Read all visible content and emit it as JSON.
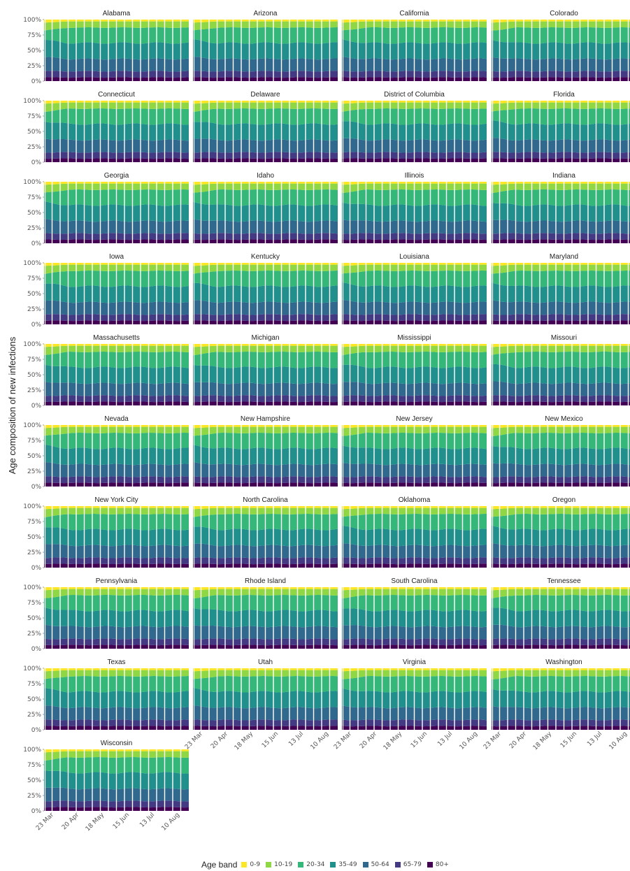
{
  "chart_data": {
    "type": "area",
    "y_axis_label": "Age composition of new infections",
    "y_ticks": [
      "0%",
      "25%",
      "50%",
      "75%",
      "100%"
    ],
    "ylim": [
      0,
      1
    ],
    "x_ticks": [
      "23 Mar",
      "20 Apr",
      "18 May",
      "15 Jun",
      "13 Jul",
      "10 Aug"
    ],
    "legend": {
      "title": "Age band",
      "position": "bottom",
      "bands": [
        "0-9",
        "10-19",
        "20-34",
        "35-49",
        "50-64",
        "65-79",
        "80+"
      ]
    },
    "colors": [
      "#FDE725",
      "#8FD744",
      "#35B779",
      "#21908C",
      "#31688E",
      "#443A83",
      "#440154"
    ],
    "stacking_order_bottom_to_top": [
      "80+",
      "65-79",
      "50-64",
      "35-49",
      "20-34",
      "10-19",
      "0-9"
    ],
    "approx_cumulative_shares_bottom_to_top": {
      "80+": 0.06,
      "65-79": 0.16,
      "50-64": 0.36,
      "35-49": 0.62,
      "20-34": 0.87,
      "10-19": 0.97,
      "0-9": 1.0
    },
    "panels": [
      "Alabama",
      "Arizona",
      "California",
      "Colorado",
      "Connecticut",
      "Delaware",
      "District of Columbia",
      "Florida",
      "Georgia",
      "Idaho",
      "Illinois",
      "Indiana",
      "Iowa",
      "Kentucky",
      "Louisiana",
      "Maryland",
      "Massachusetts",
      "Michigan",
      "Mississippi",
      "Missouri",
      "Nevada",
      "New Hampshire",
      "New Jersey",
      "New Mexico",
      "New York City",
      "North Carolina",
      "Oklahoma",
      "Oregon",
      "Pennsylvania",
      "Rhode Island",
      "South Carolina",
      "Tennessee",
      "Texas",
      "Utah",
      "Virginia",
      "Washington",
      "Wisconsin"
    ]
  }
}
